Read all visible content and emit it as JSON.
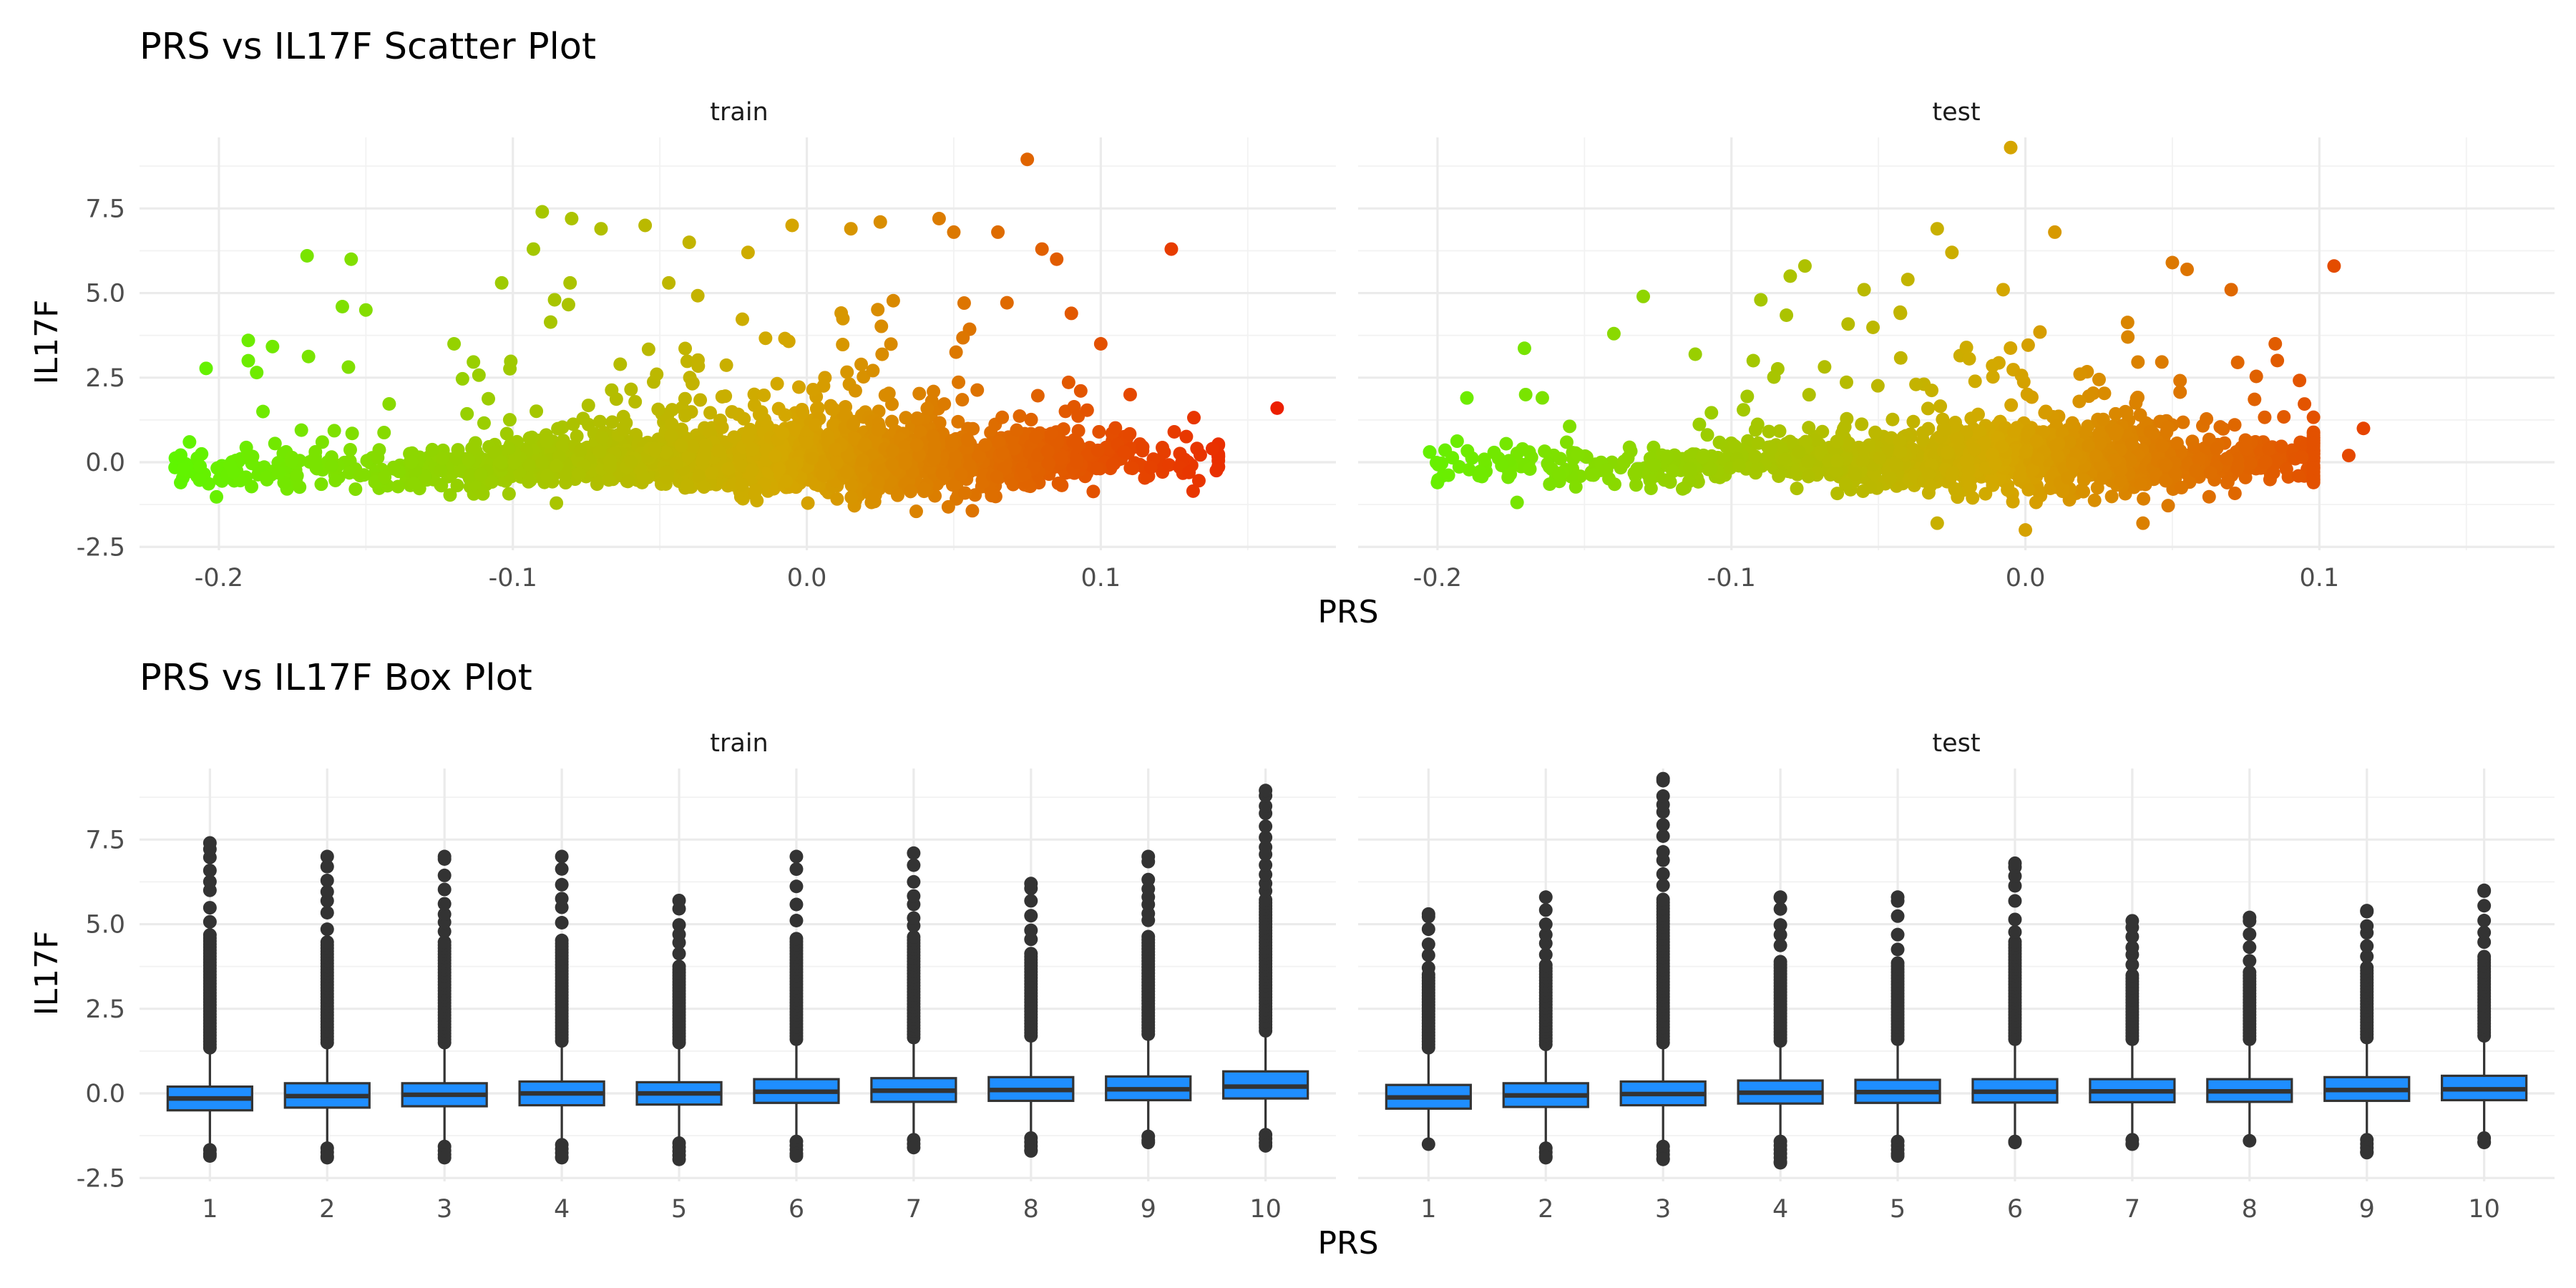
{
  "colors": {
    "low": "#5ff500",
    "mid": "#d4a800",
    "high": "#ec1f00",
    "box_fill": "#1f8eff",
    "box_line": "#333333",
    "outlier": "#333333"
  },
  "scatter_title": "PRS vs IL17F Scatter Plot",
  "box_title": "PRS vs IL17F Box Plot",
  "scatter_xlabel": "PRS",
  "scatter_ylabel": "IL17F",
  "box_xlabel": "PRS",
  "box_ylabel": "IL17F",
  "facets": [
    "train",
    "test"
  ],
  "chart_data": [
    {
      "type": "scatter",
      "title": "PRS vs IL17F Scatter Plot",
      "xlabel": "PRS",
      "ylabel": "IL17F",
      "facets": [
        "train",
        "test"
      ],
      "xlim": [
        -0.227,
        0.18
      ],
      "ylim": [
        -2.6,
        9.6
      ],
      "x_ticks": [
        -0.2,
        -0.1,
        0.0,
        0.1
      ],
      "x_tick_labels": [
        "-0.2",
        "-0.1",
        "0.0",
        "0.1"
      ],
      "y_ticks": [
        -2.5,
        0.0,
        2.5,
        5.0,
        7.5
      ],
      "y_tick_labels": [
        "-2.5",
        "0.0",
        "2.5",
        "5.0",
        "7.5"
      ],
      "color_by": "PRS",
      "grid": true,
      "series": [
        {
          "facet": "train",
          "x_range": [
            -0.215,
            0.16
          ],
          "y_core_range": [
            -1.9,
            1.8
          ],
          "points": [
            [
              -0.19,
              3.6
            ],
            [
              -0.19,
              3.0
            ],
            [
              -0.185,
              1.5
            ],
            [
              -0.17,
              6.1
            ],
            [
              -0.155,
              6.0
            ],
            [
              -0.158,
              4.6
            ],
            [
              -0.15,
              4.5
            ],
            [
              -0.12,
              3.5
            ],
            [
              -0.09,
              7.4
            ],
            [
              -0.093,
              6.3
            ],
            [
              -0.08,
              7.2
            ],
            [
              -0.07,
              6.9
            ],
            [
              -0.055,
              7.0
            ],
            [
              -0.04,
              6.5
            ],
            [
              -0.02,
              6.2
            ],
            [
              -0.005,
              7.0
            ],
            [
              0.015,
              6.9
            ],
            [
              0.025,
              7.1
            ],
            [
              0.045,
              7.2
            ],
            [
              0.05,
              6.8
            ],
            [
              0.065,
              6.8
            ],
            [
              0.075,
              8.95
            ],
            [
              0.08,
              6.3
            ],
            [
              0.085,
              6.0
            ],
            [
              0.09,
              4.4
            ],
            [
              0.1,
              3.5
            ],
            [
              0.11,
              2.0
            ],
            [
              0.124,
              6.3
            ],
            [
              0.125,
              0.9
            ],
            [
              0.13,
              -0.3
            ],
            [
              0.138,
              0.4
            ],
            [
              0.16,
              1.6
            ],
            [
              -0.21,
              0.6
            ],
            [
              -0.212,
              -0.2
            ],
            [
              -0.213,
              -0.6
            ]
          ]
        },
        {
          "facet": "test",
          "x_range": [
            -0.205,
            0.118
          ],
          "y_core_range": [
            -2.0,
            1.6
          ],
          "points": [
            [
              -0.005,
              9.3
            ],
            [
              -0.03,
              6.9
            ],
            [
              -0.025,
              6.2
            ],
            [
              0.01,
              6.8
            ],
            [
              -0.04,
              5.4
            ],
            [
              -0.075,
              5.8
            ],
            [
              -0.08,
              5.5
            ],
            [
              -0.09,
              4.8
            ],
            [
              -0.13,
              4.9
            ],
            [
              -0.14,
              3.8
            ],
            [
              -0.17,
              2.0
            ],
            [
              -0.19,
              1.9
            ],
            [
              -0.2,
              -0.6
            ],
            [
              0.05,
              5.9
            ],
            [
              0.055,
              5.7
            ],
            [
              0.07,
              5.1
            ],
            [
              0.085,
              3.5
            ],
            [
              0.105,
              5.8
            ],
            [
              0.115,
              1.0
            ],
            [
              0.11,
              0.2
            ],
            [
              0.0,
              -2.0
            ],
            [
              0.04,
              -1.8
            ],
            [
              -0.03,
              -1.8
            ]
          ]
        }
      ]
    },
    {
      "type": "box",
      "title": "PRS vs IL17F Box Plot",
      "xlabel": "PRS",
      "ylabel": "IL17F",
      "facets": [
        "train",
        "test"
      ],
      "categories": [
        "1",
        "2",
        "3",
        "4",
        "5",
        "6",
        "7",
        "8",
        "9",
        "10"
      ],
      "ylim": [
        -2.6,
        9.6
      ],
      "y_ticks": [
        -2.5,
        0.0,
        2.5,
        5.0,
        7.5
      ],
      "y_tick_labels": [
        "-2.5",
        "0.0",
        "2.5",
        "5.0",
        "7.5"
      ],
      "grid": true,
      "series": [
        {
          "facet": "train",
          "boxes": [
            {
              "q1": -0.5,
              "median": -0.15,
              "q3": 0.2,
              "whisker_low": -1.55,
              "whisker_high": 1.2,
              "outlier_max": 7.4,
              "outlier_min": -1.85
            },
            {
              "q1": -0.42,
              "median": -0.08,
              "q3": 0.3,
              "whisker_low": -1.5,
              "whisker_high": 1.35,
              "outlier_max": 7.0,
              "outlier_min": -1.9
            },
            {
              "q1": -0.38,
              "median": -0.04,
              "q3": 0.3,
              "whisker_low": -1.45,
              "whisker_high": 1.35,
              "outlier_max": 7.0,
              "outlier_min": -1.9
            },
            {
              "q1": -0.35,
              "median": 0.0,
              "q3": 0.35,
              "whisker_low": -1.4,
              "whisker_high": 1.4,
              "outlier_max": 7.0,
              "outlier_min": -1.9
            },
            {
              "q1": -0.33,
              "median": 0.0,
              "q3": 0.33,
              "whisker_low": -1.35,
              "whisker_high": 1.35,
              "outlier_max": 5.7,
              "outlier_min": -1.95
            },
            {
              "q1": -0.28,
              "median": 0.05,
              "q3": 0.42,
              "whisker_low": -1.3,
              "whisker_high": 1.45,
              "outlier_max": 7.0,
              "outlier_min": -1.85
            },
            {
              "q1": -0.25,
              "median": 0.08,
              "q3": 0.45,
              "whisker_low": -1.25,
              "whisker_high": 1.5,
              "outlier_max": 7.1,
              "outlier_min": -1.6
            },
            {
              "q1": -0.22,
              "median": 0.1,
              "q3": 0.48,
              "whisker_low": -1.2,
              "whisker_high": 1.55,
              "outlier_max": 6.2,
              "outlier_min": -1.7
            },
            {
              "q1": -0.2,
              "median": 0.12,
              "q3": 0.5,
              "whisker_low": -1.15,
              "whisker_high": 1.6,
              "outlier_max": 7.0,
              "outlier_min": -1.45
            },
            {
              "q1": -0.15,
              "median": 0.2,
              "q3": 0.65,
              "whisker_low": -1.1,
              "whisker_high": 1.7,
              "outlier_max": 8.95,
              "outlier_min": -1.55
            }
          ]
        },
        {
          "facet": "test",
          "boxes": [
            {
              "q1": -0.45,
              "median": -0.12,
              "q3": 0.25,
              "whisker_low": -1.5,
              "whisker_high": 1.2,
              "outlier_max": 5.3,
              "outlier_min": -1.5
            },
            {
              "q1": -0.4,
              "median": -0.06,
              "q3": 0.3,
              "whisker_low": -1.5,
              "whisker_high": 1.3,
              "outlier_max": 5.8,
              "outlier_min": -1.9
            },
            {
              "q1": -0.35,
              "median": -0.02,
              "q3": 0.35,
              "whisker_low": -1.45,
              "whisker_high": 1.35,
              "outlier_max": 9.3,
              "outlier_min": -1.95
            },
            {
              "q1": -0.3,
              "median": 0.02,
              "q3": 0.38,
              "whisker_low": -1.3,
              "whisker_high": 1.4,
              "outlier_max": 5.8,
              "outlier_min": -2.05
            },
            {
              "q1": -0.28,
              "median": 0.04,
              "q3": 0.4,
              "whisker_low": -1.3,
              "whisker_high": 1.45,
              "outlier_max": 5.8,
              "outlier_min": -1.85
            },
            {
              "q1": -0.27,
              "median": 0.05,
              "q3": 0.42,
              "whisker_low": -1.3,
              "whisker_high": 1.45,
              "outlier_max": 6.8,
              "outlier_min": -1.45
            },
            {
              "q1": -0.26,
              "median": 0.06,
              "q3": 0.42,
              "whisker_low": -1.25,
              "whisker_high": 1.45,
              "outlier_max": 5.1,
              "outlier_min": -1.5
            },
            {
              "q1": -0.25,
              "median": 0.06,
              "q3": 0.42,
              "whisker_low": -1.4,
              "whisker_high": 1.45,
              "outlier_max": 5.2,
              "outlier_min": -1.4
            },
            {
              "q1": -0.22,
              "median": 0.1,
              "q3": 0.48,
              "whisker_low": -1.25,
              "whisker_high": 1.5,
              "outlier_max": 5.4,
              "outlier_min": -1.75
            },
            {
              "q1": -0.2,
              "median": 0.12,
              "q3": 0.52,
              "whisker_low": -1.2,
              "whisker_high": 1.55,
              "outlier_max": 6.0,
              "outlier_min": -1.45
            }
          ]
        }
      ]
    }
  ]
}
